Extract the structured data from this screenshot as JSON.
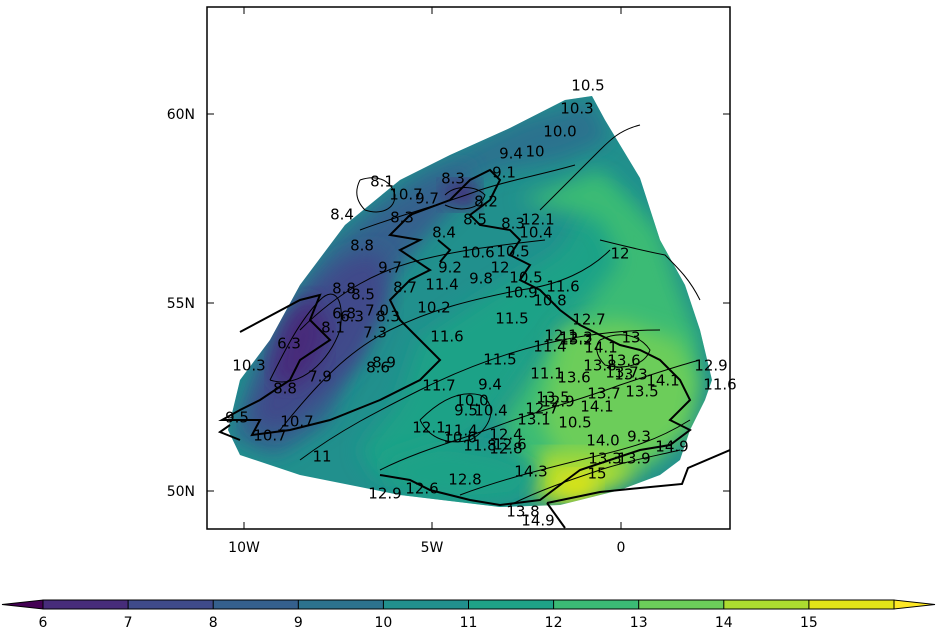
{
  "map": {
    "lat_ticks": [
      "60N",
      "55N",
      "50N"
    ],
    "lon_ticks": [
      "10W",
      "5W",
      "0"
    ],
    "region": "UK and Ireland with North Sea and English Channel",
    "projection": "plate carree",
    "fill_colormap": "viridis",
    "fill_levels": [
      6,
      7,
      8,
      9,
      10,
      11,
      12,
      13,
      14,
      15
    ],
    "isoline_labels": [
      "10.5",
      "10.3",
      "10.0",
      "9.4",
      "10",
      "9.1",
      "8.3",
      "8.1",
      "10.7",
      "9.7",
      "8.2",
      "8.4",
      "8.5",
      "8.3",
      "8.3",
      "12.1",
      "10.4",
      "8.8",
      "8.4",
      "10.6",
      "10.5",
      "9.7",
      "9.2",
      "12",
      "8.7",
      "11.4",
      "9.8",
      "10.5",
      "11.6",
      "10.2",
      "10.9",
      "10.8",
      "8.8",
      "8.5",
      "8.3",
      "6.3",
      "6.8",
      "7.0",
      "12.7",
      "11.6",
      "11.5",
      "12.1",
      "12.3",
      "6.3",
      "8.1",
      "7.3",
      "11.4",
      "13.2",
      "14.1",
      "13.6",
      "12.9",
      "10.3",
      "8.9",
      "8.6",
      "11.5",
      "13.8",
      "13.7",
      "14.1",
      "11.6",
      "7.9",
      "11.7",
      "9.4",
      "11.1",
      "13.6",
      "8.8",
      "13.3",
      "13.7",
      "13.5",
      "13.5",
      "10.0",
      "12.9",
      "14.1",
      "9.5",
      "10.7",
      "10.4",
      "12.7",
      "9.5",
      "12.1",
      "13.1",
      "10.7",
      "11.4",
      "12.4",
      "10.5",
      "14.0",
      "11.8",
      "12.8",
      "14.9",
      "9.3",
      "10.6",
      "13.3",
      "13.9",
      "14.3",
      "12.6",
      "12.8",
      "12.9",
      "12.6",
      "13.8",
      "14.9",
      "11",
      "12",
      "13",
      "15"
    ]
  },
  "colorbar": {
    "ticks": [
      "6",
      "7",
      "8",
      "9",
      "10",
      "11",
      "12",
      "13",
      "14",
      "15"
    ],
    "colors": [
      "#472c7a",
      "#3f4a8a",
      "#35608d",
      "#2c728e",
      "#21908d",
      "#1fa287",
      "#3bbb75",
      "#6ccd5a",
      "#addc30",
      "#e2e418"
    ],
    "under_color": "#440154",
    "over_color": "#fde725"
  }
}
